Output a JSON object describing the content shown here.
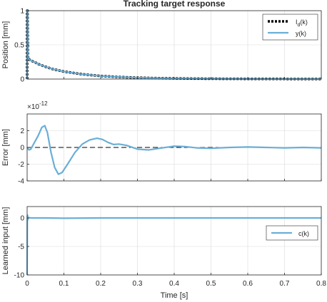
{
  "figure": {
    "title": "Tracking target response",
    "xlabel": "Time [s]",
    "x_ticks": [
      "0",
      "0.1",
      "0.2",
      "0.3",
      "0.4",
      "0.5",
      "0.6",
      "0.7",
      "0.8"
    ],
    "colors": {
      "axis": "#262626",
      "grid": "#d9d9d9",
      "blue": "#6baed6",
      "black": "#000000"
    }
  },
  "chart_data": [
    {
      "type": "line",
      "panel": "top",
      "ylabel": "Position [mm]",
      "xlim": [
        0,
        0.8
      ],
      "ylim": [
        0,
        1
      ],
      "y_ticks": [
        "0",
        "0.5",
        "1"
      ],
      "grid": true,
      "legend_placement": "top-right",
      "legend": [
        "I_d(k)",
        "y(k)"
      ],
      "legend_main": [
        "I",
        "y(k)"
      ],
      "legend_sub": "d",
      "legend_tail": "(k)",
      "series": [
        {
          "name": "I_d(k)",
          "style": "dotted-black",
          "x": [
            0,
            0.0001,
            0.001,
            0.002,
            0.005,
            0.01,
            0.02,
            0.03,
            0.05,
            0.07,
            0.1,
            0.15,
            0.2,
            0.25,
            0.3,
            0.35,
            0.4,
            0.45,
            0.5,
            0.55,
            0.6,
            0.65,
            0.7,
            0.75,
            0.8
          ],
          "y": [
            0,
            1,
            1,
            0.3,
            0.29,
            0.27,
            0.25,
            0.22,
            0.18,
            0.145,
            0.11,
            0.07,
            0.045,
            0.03,
            0.02,
            0.014,
            0.01,
            0.007,
            0.005,
            0.004,
            0.003,
            0.002,
            0.002,
            0.001,
            0.001
          ]
        },
        {
          "name": "y(k)",
          "style": "solid-blue",
          "x": [
            0,
            0.0001,
            0.001,
            0.002,
            0.005,
            0.01,
            0.02,
            0.03,
            0.05,
            0.07,
            0.1,
            0.15,
            0.2,
            0.25,
            0.3,
            0.35,
            0.4,
            0.45,
            0.5,
            0.55,
            0.6,
            0.65,
            0.7,
            0.75,
            0.8
          ],
          "y": [
            0,
            1,
            1,
            0.3,
            0.29,
            0.27,
            0.25,
            0.22,
            0.18,
            0.145,
            0.11,
            0.07,
            0.045,
            0.03,
            0.02,
            0.014,
            0.01,
            0.007,
            0.005,
            0.004,
            0.003,
            0.002,
            0.002,
            0.001,
            0.001
          ]
        }
      ]
    },
    {
      "type": "line",
      "panel": "middle",
      "ylabel": "Error [mm]",
      "y_multiplier": "×10",
      "y_exponent": "-12",
      "xlim": [
        0,
        0.8
      ],
      "ylim": [
        -4,
        4
      ],
      "y_ticks": [
        "-4",
        "-2",
        "0",
        "2"
      ],
      "grid": true,
      "reference_line": {
        "y": 0,
        "style": "dashed"
      },
      "series": [
        {
          "name": "",
          "style": "solid-blue",
          "x": [
            0,
            0.005,
            0.01,
            0.02,
            0.03,
            0.04,
            0.048,
            0.055,
            0.065,
            0.075,
            0.085,
            0.095,
            0.11,
            0.13,
            0.15,
            0.17,
            0.19,
            0.205,
            0.22,
            0.235,
            0.25,
            0.27,
            0.3,
            0.33,
            0.36,
            0.4,
            0.43,
            0.46,
            0.5,
            0.55,
            0.6,
            0.65,
            0.7,
            0.75,
            0.8
          ],
          "y": [
            0,
            -0.3,
            -0.2,
            0.6,
            1.4,
            2.4,
            2.6,
            1.8,
            -0.6,
            -2.4,
            -3.2,
            -3.0,
            -2.0,
            -0.6,
            0.4,
            0.9,
            1.1,
            0.95,
            0.6,
            0.35,
            0.4,
            0.25,
            -0.2,
            -0.3,
            -0.1,
            0.15,
            0.1,
            -0.05,
            -0.1,
            0,
            0.05,
            0,
            -0.05,
            0,
            -0.05
          ]
        }
      ]
    },
    {
      "type": "line",
      "panel": "bottom",
      "ylabel": "Learned input [mm]",
      "xlim": [
        0,
        0.8
      ],
      "ylim": [
        -10,
        2
      ],
      "y_ticks": [
        "-10",
        "-5",
        "0"
      ],
      "grid": true,
      "legend_placement": "middle-right",
      "legend": [
        "c(k)"
      ],
      "series": [
        {
          "name": "c(k)",
          "style": "solid-blue",
          "x": [
            0,
            0.0005,
            0.001,
            0.002,
            0.003,
            0.005,
            0.01,
            0.05,
            0.1,
            0.2,
            0.3,
            0.4,
            0.5,
            0.6,
            0.7,
            0.8
          ],
          "y": [
            -10,
            0.3,
            0.5,
            -0.3,
            0.1,
            0.05,
            0,
            0,
            -0.05,
            0,
            0,
            0,
            0,
            0,
            0,
            0
          ]
        }
      ]
    }
  ]
}
